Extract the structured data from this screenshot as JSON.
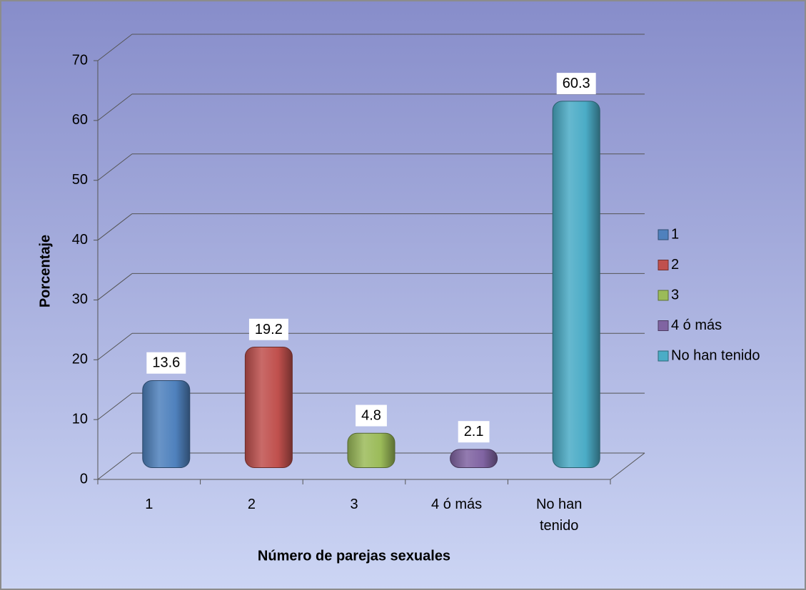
{
  "chart_data": {
    "type": "bar3d",
    "categories": [
      "1",
      "2",
      "3",
      "4 ó más",
      "No han tenido"
    ],
    "values": [
      13.6,
      19.2,
      4.8,
      2.1,
      60.3
    ],
    "colors": [
      "#4f81bd",
      "#c0504d",
      "#9bbb59",
      "#8064a2",
      "#4bacc6"
    ],
    "ylim": [
      0,
      70
    ],
    "yticks": [
      0,
      10,
      20,
      30,
      40,
      50,
      60,
      70
    ],
    "ylabel": "Porcentaje",
    "xlabel": "Número de parejas sexuales",
    "grid": true,
    "legend": "right"
  }
}
